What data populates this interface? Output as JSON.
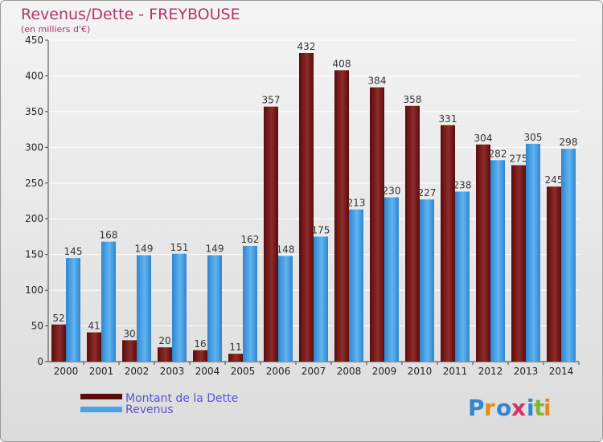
{
  "chart_data": {
    "type": "bar",
    "title": "Revenus/Dette - FREYBOUSE",
    "subtitle": "(en milliers d'€)",
    "categories": [
      "2000",
      "2001",
      "2002",
      "2003",
      "2004",
      "2005",
      "2006",
      "2007",
      "2008",
      "2009",
      "2010",
      "2011",
      "2012",
      "2013",
      "2014"
    ],
    "series": [
      {
        "name": "Montant de la Dette",
        "color": "#7a1a1a",
        "values": [
          52,
          41,
          30,
          20,
          16,
          11,
          357,
          432,
          408,
          384,
          358,
          331,
          304,
          275,
          245
        ]
      },
      {
        "name": "Revenus",
        "color": "#4aa3e6",
        "values": [
          145,
          168,
          149,
          151,
          149,
          162,
          148,
          175,
          213,
          230,
          227,
          238,
          282,
          305,
          298
        ]
      }
    ],
    "ylim": [
      0,
      450
    ],
    "yticks": [
      0,
      50,
      100,
      150,
      200,
      250,
      300,
      350,
      400,
      450
    ],
    "grid": true,
    "legend": "bottom-left"
  },
  "logo": {
    "text": "Proxiti"
  }
}
